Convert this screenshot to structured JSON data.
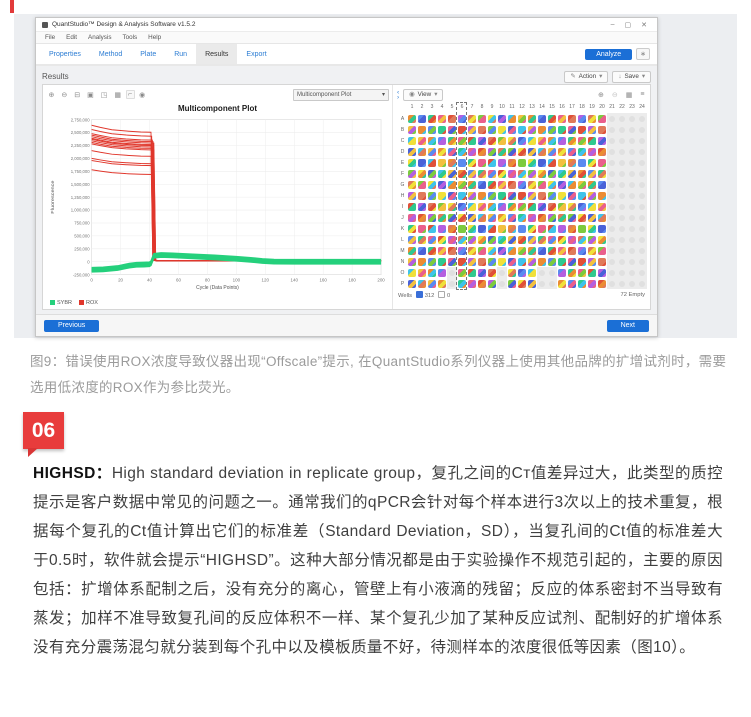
{
  "window": {
    "title": "QuantStudio™ Design & Analysis Software v1.5.2",
    "controls": {
      "minimize": "–",
      "maximize": "▢",
      "close": "✕"
    },
    "menu": [
      "File",
      "Edit",
      "Analysis",
      "Tools",
      "Help"
    ],
    "tabs": [
      "Properties",
      "Method",
      "Plate",
      "Run",
      "Results",
      "Export"
    ],
    "active_tab": "Results",
    "analyze_label": "Analyze",
    "results_header": "Results",
    "action_label": "Action",
    "save_label": "Save",
    "plot_selector": "Multicomponent Plot",
    "view_label": "View",
    "previous_label": "Previous",
    "next_label": "Next"
  },
  "icons": {
    "zoom_in": "⊕",
    "zoom_out": "⊖",
    "print": "⊟",
    "copy": "▣",
    "pan": "◳",
    "table": "▦",
    "crop": "⌐",
    "eye": "◉",
    "gear": "∗",
    "pencil": "✎",
    "save": "↓",
    "chevron": "▾",
    "pager_left": "‹",
    "pager_right": "›",
    "grid_view": "▦",
    "list_view": "≡"
  },
  "chart_data": {
    "type": "line",
    "title": "Multicomponent Plot",
    "xlabel": "Cycle (Data Points)",
    "ylabel": "Fluorescence",
    "xlim": [
      0,
      200
    ],
    "xtick_step": 20,
    "ylim": [
      -250000,
      2750000
    ],
    "ytick_step": 250000,
    "grid": true,
    "legend_position": "bottom-left",
    "legend": [
      {
        "name": "SYBR",
        "color": "#25d07c"
      },
      {
        "name": "ROX",
        "color": "#e0372c"
      }
    ],
    "rox_drop_cycle": 42,
    "rox_post_drop_level": 20000,
    "red_starts": [
      2640000,
      2560000,
      2480000,
      2450000,
      2420000,
      2390000,
      2370000,
      2340000,
      2310000,
      2280000,
      2150000,
      2000000,
      1960000,
      1780000
    ],
    "green_offsets": [
      -40000,
      -25000,
      -12000,
      0,
      12000,
      25000,
      40000
    ],
    "green_base": [
      [
        0,
        -155000
      ],
      [
        8,
        -148000
      ],
      [
        18,
        -122000
      ],
      [
        26,
        -75000
      ],
      [
        31,
        -58000
      ],
      [
        36,
        -55000
      ],
      [
        40,
        -50000
      ],
      [
        41,
        -30000
      ],
      [
        43,
        115000
      ],
      [
        48,
        130000
      ],
      [
        56,
        124000
      ],
      [
        70,
        104000
      ],
      [
        85,
        82000
      ],
      [
        100,
        58000
      ],
      [
        110,
        36000
      ],
      [
        118,
        14000
      ],
      [
        126,
        2000
      ],
      [
        140,
        0
      ],
      [
        200,
        0
      ]
    ]
  },
  "plate": {
    "columns": 24,
    "rows": [
      "A",
      "B",
      "C",
      "D",
      "E",
      "F",
      "G",
      "H",
      "I",
      "J",
      "K",
      "L",
      "M",
      "N",
      "O",
      "P"
    ],
    "filled_through_column": 20,
    "sparse_rows": [
      "O",
      "P"
    ],
    "sparse_empty_columns": [
      5,
      10,
      14,
      15
    ],
    "selected_column": 6,
    "wells_label": "Wells",
    "wells_count_primary": "312",
    "wells_count_secondary": "0",
    "empty_label": "72 Empty",
    "palette": [
      "#f2c040",
      "#e05038",
      "#4a62d8",
      "#2fc98f",
      "#7ccb3e",
      "#eb8c34",
      "#b45fe0",
      "#3fc3ea",
      "#ea5f8c",
      "#f0e03a",
      "#5a8af0",
      "#e07a5a"
    ]
  },
  "article": {
    "section_badge": "06",
    "caption": "图9：错误使用ROX浓度导致仪器出现“Offscale”提示, 在QuantStudio系列仪器上使用其他品牌的扩增试剂时，需要选用低浓度的ROX作为参比荧光。",
    "body_lead": "HIGHSD：",
    "body_text": "High standard deviation in replicate group，复孔之间的Cт值差异过大，此类型的质控提示是客户数据中常见的问题之一。通常我们的qPCR会针对每个样本进行3次以上的技术重复，根据每个复孔的Ct值计算出它们的标准差（Standard Deviation，SD），当复孔间的Ct值的标准差大于0.5时，软件就会提示“HIGHSD”。这种大部分情况都是由于实验操作不规范引起的，主要的原因包括：扩增体系配制之后，没有充分的离心，管壁上有小液滴的残留；反应的体系密封不当导致有蒸发；加样不准导致复孔间的反应体积不一样、某个复孔少加了某种反应试剂、配制好的扩增体系没有充分震荡混匀就分装到每个孔中以及模板质量不好，待测样本的浓度很低等因素（图10）。"
  }
}
